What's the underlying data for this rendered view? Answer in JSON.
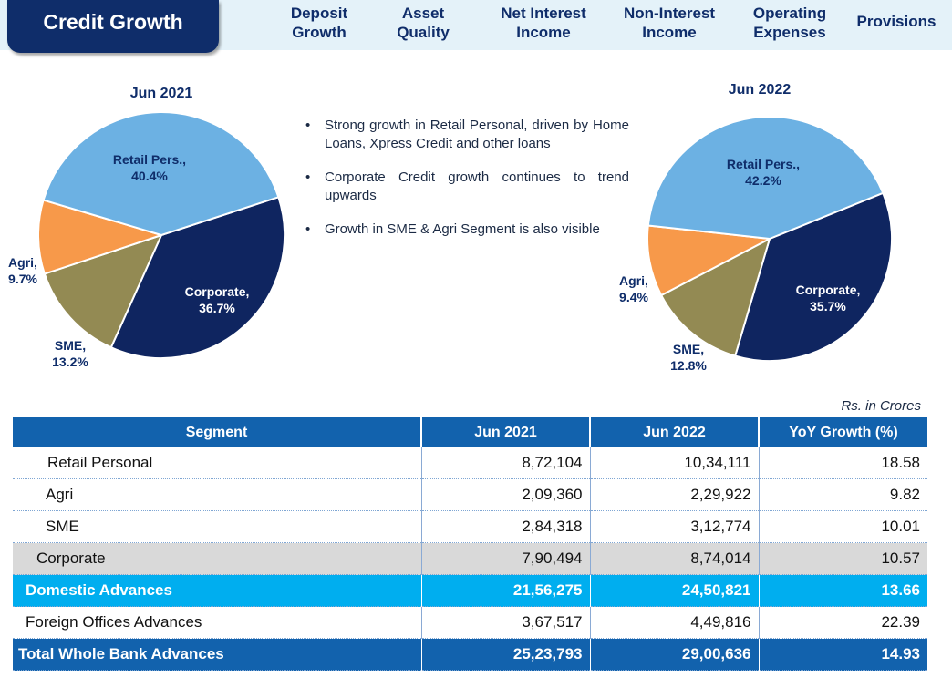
{
  "header": {
    "title": "Credit Growth",
    "tabs": [
      {
        "label": "Deposit\nGrowth"
      },
      {
        "label": "Asset\nQuality"
      },
      {
        "label": "Net Interest\nIncome"
      },
      {
        "label": "Non-Interest\nIncome"
      },
      {
        "label": "Operating\nExpenses"
      },
      {
        "label": "Provisions"
      }
    ]
  },
  "chart_data": [
    {
      "type": "pie",
      "title": "Jun 2021",
      "categories": [
        "Retail Pers.",
        "Corporate",
        "SME",
        "Agri"
      ],
      "values": [
        40.4,
        36.7,
        13.2,
        9.7
      ],
      "labels": [
        "Retail Pers.,\n40.4%",
        "Corporate,\n36.7%",
        "SME,\n13.2%",
        "Agri,\n9.7%"
      ],
      "colors": [
        "#6cb1e3",
        "#0f2560",
        "#938a53",
        "#f7994a"
      ]
    },
    {
      "type": "pie",
      "title": "Jun 2022",
      "categories": [
        "Retail Pers.",
        "Corporate",
        "SME",
        "Agri"
      ],
      "values": [
        42.2,
        35.7,
        12.8,
        9.4
      ],
      "labels": [
        "Retail Pers.,\n42.2%",
        "Corporate,\n35.7%",
        "SME,\n12.8%",
        "Agri,\n9.4%"
      ],
      "colors": [
        "#6cb1e3",
        "#0f2560",
        "#938a53",
        "#f7994a"
      ]
    }
  ],
  "bullets": [
    "Strong growth in Retail Personal, driven by Home Loans, Xpress Credit and other loans",
    "Corporate Credit growth continues to trend upwards",
    "Growth in SME & Agri Segment is also visible"
  ],
  "table": {
    "units": "Rs. in Crores",
    "columns": [
      "Segment",
      "Jun 2021",
      "Jun 2022",
      "YoY Growth (%)"
    ],
    "rows": [
      {
        "segment": "Retail Personal",
        "jun2021": "8,72,104",
        "jun2022": "10,34,111",
        "yoy": "18.58"
      },
      {
        "segment": "Agri",
        "jun2021": "2,09,360",
        "jun2022": "2,29,922",
        "yoy": "9.82"
      },
      {
        "segment": "SME",
        "jun2021": "2,84,318",
        "jun2022": "3,12,774",
        "yoy": "10.01"
      },
      {
        "segment": "Corporate",
        "jun2021": "7,90,494",
        "jun2022": "8,74,014",
        "yoy": "10.57"
      },
      {
        "segment": "Domestic Advances",
        "jun2021": "21,56,275",
        "jun2022": "24,50,821",
        "yoy": "13.66"
      },
      {
        "segment": "Foreign Offices Advances",
        "jun2021": "3,67,517",
        "jun2022": "4,49,816",
        "yoy": "22.39"
      },
      {
        "segment": "Total Whole Bank Advances",
        "jun2021": "25,23,793",
        "jun2022": "29,00,636",
        "yoy": "14.93"
      }
    ]
  }
}
